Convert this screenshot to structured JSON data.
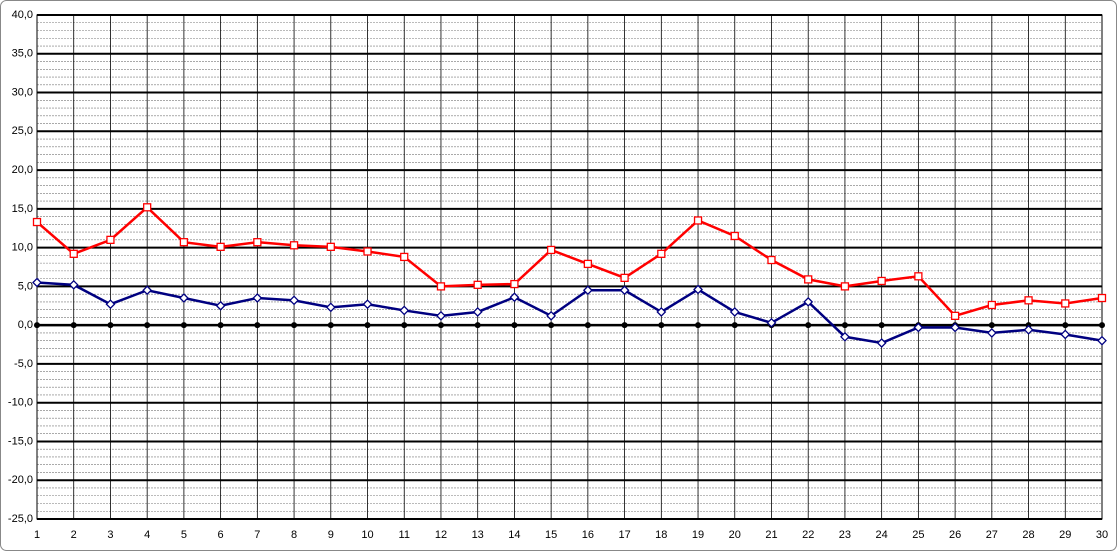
{
  "chart_data": {
    "type": "line",
    "x": [
      1,
      2,
      3,
      4,
      5,
      6,
      7,
      8,
      9,
      10,
      11,
      12,
      13,
      14,
      15,
      16,
      17,
      18,
      19,
      20,
      21,
      22,
      23,
      24,
      25,
      26,
      27,
      28,
      29,
      30
    ],
    "xlim": [
      1,
      30
    ],
    "ylim": [
      -25,
      40
    ],
    "yticks": [
      {
        "value": -25,
        "label": "-25,0"
      },
      {
        "value": -20,
        "label": "-20,0"
      },
      {
        "value": -15,
        "label": "-15,0"
      },
      {
        "value": -10,
        "label": "-10,0"
      },
      {
        "value": -5,
        "label": "-5,0"
      },
      {
        "value": 0,
        "label": "0,0"
      },
      {
        "value": 5,
        "label": "5,0"
      },
      {
        "value": 10,
        "label": "10,0"
      },
      {
        "value": 15,
        "label": "15,0"
      },
      {
        "value": 20,
        "label": "20,0"
      },
      {
        "value": 25,
        "label": "25,0"
      },
      {
        "value": 30,
        "label": "30,0"
      },
      {
        "value": 35,
        "label": "35,0"
      },
      {
        "value": 40,
        "label": "40,0"
      }
    ],
    "grid": true,
    "minor_grid_step": 1,
    "series": [
      {
        "color": "#000000",
        "marker": "circle",
        "values": [
          0,
          0,
          0,
          0,
          0,
          0,
          0,
          0,
          0,
          0,
          0,
          0,
          0,
          0,
          0,
          0,
          0,
          0,
          0,
          0,
          0,
          0,
          0,
          0,
          0,
          0,
          0,
          0,
          0,
          0
        ]
      },
      {
        "color": "#ff0000",
        "marker": "square",
        "values": [
          13.3,
          9.2,
          11.0,
          15.2,
          10.7,
          10.1,
          10.7,
          10.3,
          10.1,
          9.5,
          8.8,
          5.0,
          5.2,
          5.3,
          9.7,
          7.9,
          6.1,
          9.2,
          13.5,
          11.5,
          8.4,
          5.9,
          5.0,
          5.7,
          6.3,
          1.2,
          2.6,
          3.2,
          2.8,
          3.5
        ]
      },
      {
        "color": "#000080",
        "marker": "diamond",
        "values": [
          5.5,
          5.2,
          2.7,
          4.5,
          3.5,
          2.5,
          3.5,
          3.2,
          2.3,
          2.7,
          1.9,
          1.2,
          1.7,
          3.6,
          1.2,
          4.5,
          4.5,
          1.7,
          4.6,
          1.7,
          0.3,
          3.0,
          -1.5,
          -2.3,
          -0.3,
          -0.3,
          -1.0,
          -0.6,
          -1.2,
          -2.0
        ]
      }
    ]
  }
}
